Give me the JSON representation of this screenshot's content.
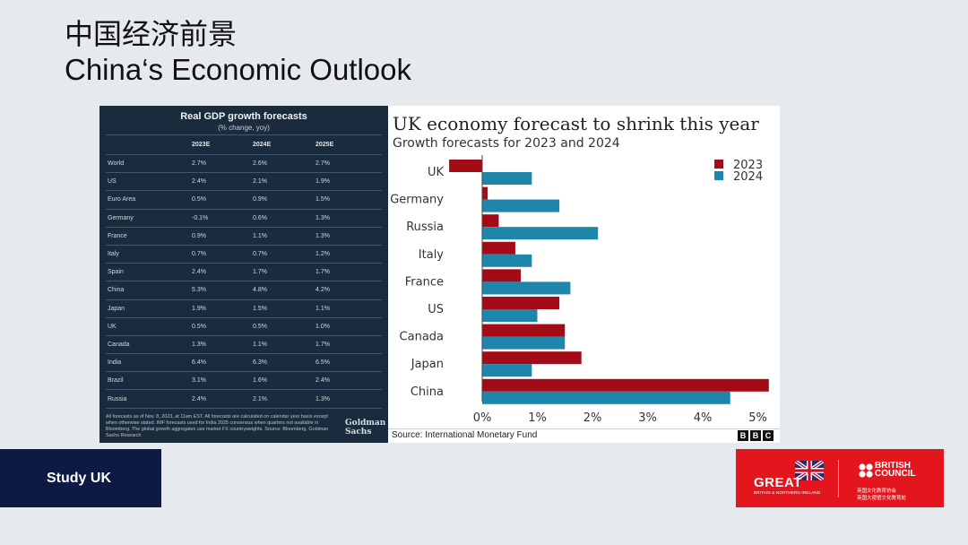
{
  "slide": {
    "title_cn": "中国经济前景",
    "title_en": "China‘s Economic Outlook"
  },
  "gs_table": {
    "title": "Real GDP growth forecasts",
    "subtitle": "(% change, yoy)",
    "columns": [
      "",
      "2023E",
      "2024E",
      "2025E"
    ],
    "rows": [
      [
        "World",
        "2.7%",
        "2.6%",
        "2.7%"
      ],
      [
        "US",
        "2.4%",
        "2.1%",
        "1.9%"
      ],
      [
        "Euro Area",
        "0.5%",
        "0.9%",
        "1.5%"
      ],
      [
        "Germany",
        "-0.1%",
        "0.6%",
        "1.3%"
      ],
      [
        "France",
        "0.9%",
        "1.1%",
        "1.3%"
      ],
      [
        "Italy",
        "0.7%",
        "0.7%",
        "1.2%"
      ],
      [
        "Spain",
        "2.4%",
        "1.7%",
        "1.7%"
      ],
      [
        "China",
        "5.3%",
        "4.8%",
        "4.2%"
      ],
      [
        "Japan",
        "1.9%",
        "1.5%",
        "1.1%"
      ],
      [
        "UK",
        "0.5%",
        "0.5%",
        "1.0%"
      ],
      [
        "Canada",
        "1.3%",
        "1.1%",
        "1.7%"
      ],
      [
        "India",
        "6.4%",
        "6.3%",
        "6.5%"
      ],
      [
        "Brazil",
        "3.1%",
        "1.6%",
        "2.4%"
      ],
      [
        "Russia",
        "2.4%",
        "2.1%",
        "1.3%"
      ]
    ],
    "footnote": "All forecasts as of Nov. 8, 2023, at 11am EST. All forecasts are calculated on calendar year basis except when otherwise stated. IMF forecasts used for India 2025 consensus when quarters not available in Bloomberg. The global growth aggregates use market FX countryweights. Source: Bloomberg, Goldman Sachs Research",
    "logo_line1": "Goldman",
    "logo_line2": "Sachs"
  },
  "chart_data": [
    {
      "type": "table",
      "title": "Real GDP growth forecasts",
      "subtitle": "(% change, yoy)",
      "columns": [
        "2023E",
        "2024E",
        "2025E"
      ],
      "categories": [
        "World",
        "US",
        "Euro Area",
        "Germany",
        "France",
        "Italy",
        "Spain",
        "China",
        "Japan",
        "UK",
        "Canada",
        "India",
        "Brazil",
        "Russia"
      ],
      "series": [
        {
          "name": "2023E",
          "values": [
            2.7,
            2.4,
            0.5,
            -0.1,
            0.9,
            0.7,
            2.4,
            5.3,
            1.9,
            0.5,
            1.3,
            6.4,
            3.1,
            2.4
          ]
        },
        {
          "name": "2024E",
          "values": [
            2.6,
            2.1,
            0.9,
            0.6,
            1.1,
            0.7,
            1.7,
            4.8,
            1.5,
            0.5,
            1.1,
            6.3,
            1.6,
            2.1
          ]
        },
        {
          "name": "2025E",
          "values": [
            2.7,
            1.9,
            1.5,
            1.3,
            1.3,
            1.2,
            1.7,
            4.2,
            1.1,
            1.0,
            1.7,
            6.5,
            2.4,
            1.3
          ]
        }
      ]
    },
    {
      "type": "bar",
      "orientation": "horizontal",
      "title": "UK economy forecast to shrink this year",
      "subtitle": "Growth forecasts for 2023 and 2024",
      "categories": [
        "UK",
        "Germany",
        "Russia",
        "Italy",
        "France",
        "US",
        "Canada",
        "Japan",
        "China"
      ],
      "series": [
        {
          "name": "2023",
          "color": "#a30b17",
          "values": [
            -0.6,
            0.1,
            0.3,
            0.6,
            0.7,
            1.4,
            1.5,
            1.8,
            5.2
          ]
        },
        {
          "name": "2024",
          "color": "#1e86ab",
          "values": [
            0.9,
            1.4,
            2.1,
            0.9,
            1.6,
            1.0,
            1.5,
            0.9,
            4.5
          ]
        }
      ],
      "x_ticks": [
        "0%",
        "1%",
        "2%",
        "3%",
        "4%",
        "5%"
      ],
      "xlim": [
        -0.6,
        5.3
      ],
      "legend_position": "top-right",
      "grid": false,
      "source": "Source: International Monetary Fund",
      "logo": [
        "B",
        "B",
        "C"
      ]
    }
  ],
  "footer": {
    "study_label": "Study UK",
    "great_word": "GREAT",
    "great_small": "BRITAIN & NORTHERN IRELAND",
    "bc_name_line1": "BRITISH",
    "bc_name_line2": "COUNCIL",
    "bc_cn_line1": "英国文化教育协会",
    "bc_cn_line2": "英国大使馆文化教育处",
    "colors": {
      "study_bg": "#0d1a44",
      "great_bg": "#e3161d"
    }
  }
}
